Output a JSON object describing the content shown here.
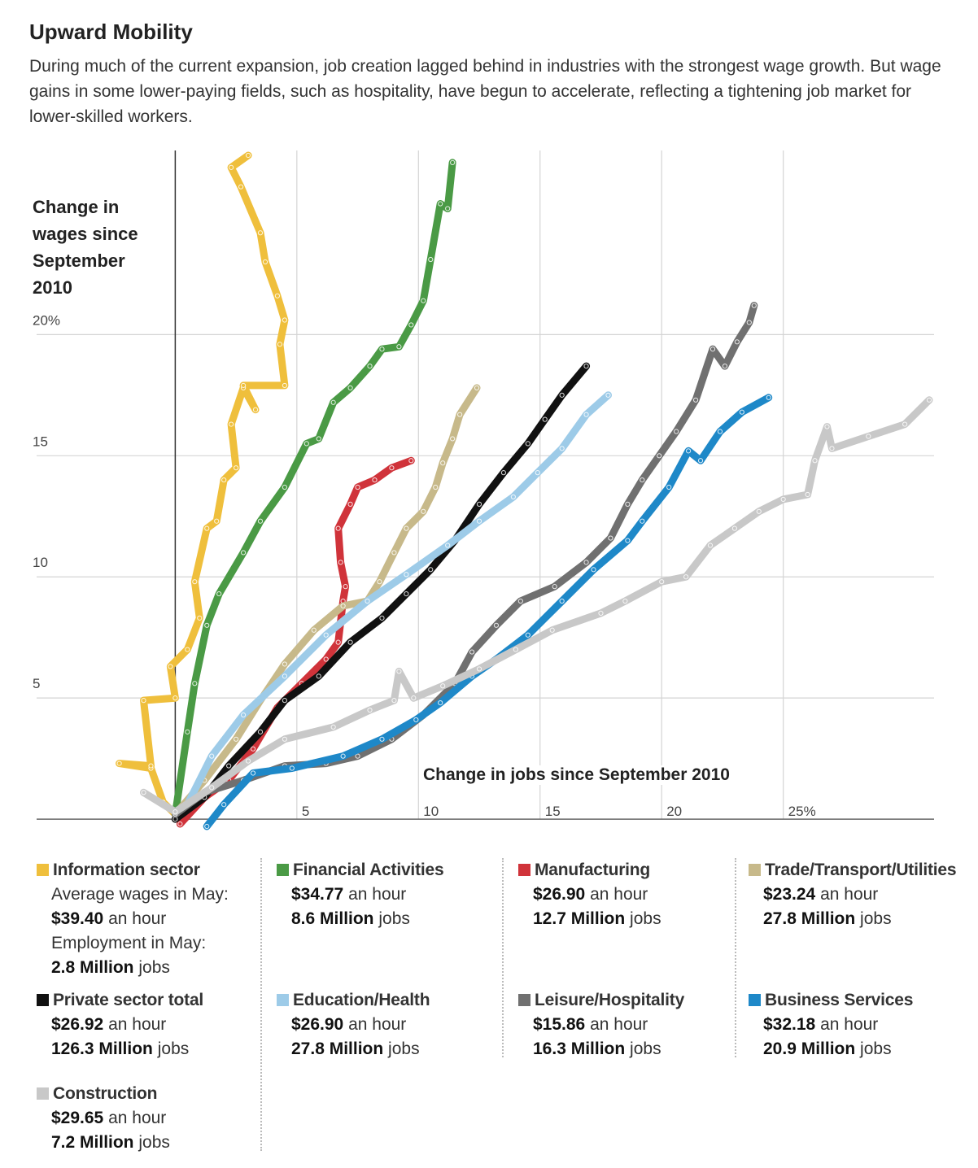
{
  "chart_data": {
    "type": "line",
    "title": "Upward Mobility",
    "subtitle": "During much of the current expansion, job creation lagged behind in industries with the strongest wage growth. But wage gains in some lower-paying fields, such as hospitality, have begun to accelerate, reflecting a tightening job market for lower-skilled workers.",
    "y_label": "Change in wages since September 2010",
    "x_label": "Change in jobs since September 2010",
    "xlim": [
      -5.7,
      31.2
    ],
    "ylim": [
      -0.4,
      27.6
    ],
    "xticks": [
      5,
      10,
      15,
      20,
      {
        "value": 25,
        "label": "25%"
      }
    ],
    "yticks": [
      5,
      10,
      15,
      {
        "value": 20,
        "label": "20%"
      }
    ],
    "grid": true,
    "wage_label": "Average wages in May:",
    "jobs_label": "Employment in May:",
    "wage_unit": "an hour",
    "jobs_unit": "jobs",
    "series": [
      {
        "name": "Information sector",
        "color": "#efbf3c",
        "wage": "$39.40",
        "jobs": "2.8 Million",
        "x": [
          0,
          -0.5,
          -1.0,
          -2.3,
          -1.0,
          -1.3,
          0,
          -0.2,
          0.5,
          1.0,
          0.8,
          1.3,
          1.7,
          2.0,
          2.5,
          2.3,
          2.8,
          3.3,
          2.8,
          4.5,
          4.3,
          4.5,
          4.2,
          3.7,
          3.5,
          2.7,
          2.3,
          3.0
        ],
        "values": [
          0.2,
          0.7,
          2.1,
          2.3,
          2.2,
          4.9,
          5.0,
          6.3,
          7.0,
          8.3,
          9.8,
          12.0,
          12.3,
          14.0,
          14.5,
          16.3,
          17.8,
          16.9,
          17.9,
          17.9,
          19.6,
          20.6,
          21.6,
          23.0,
          24.2,
          26.1,
          26.9,
          27.4
        ]
      },
      {
        "name": "Financial Activities",
        "color": "#4a9a45",
        "wage": "$34.77",
        "jobs": "8.6 Million",
        "x": [
          0,
          0.5,
          0.8,
          1.3,
          1.8,
          2.8,
          3.5,
          4.5,
          5.4,
          5.9,
          6.5,
          7.2,
          8.0,
          8.5,
          9.2,
          9.7,
          10.2,
          10.5,
          10.9,
          11.2,
          11.4
        ],
        "values": [
          0.2,
          3.6,
          5.6,
          8.0,
          9.3,
          11.0,
          12.3,
          13.7,
          15.5,
          15.7,
          17.2,
          17.8,
          18.7,
          19.4,
          19.5,
          20.4,
          21.4,
          23.1,
          25.4,
          25.2,
          27.1
        ]
      },
      {
        "name": "Manufacturing",
        "color": "#d0333a",
        "wage": "$26.90",
        "jobs": "12.7 Million",
        "x": [
          0.2,
          1.2,
          2.2,
          3.2,
          4.2,
          5.2,
          6.2,
          6.7,
          6.9,
          7.0,
          6.8,
          6.7,
          7.2,
          7.5,
          8.2,
          8.9,
          9.7
        ],
        "values": [
          -0.2,
          0.9,
          1.6,
          2.9,
          4.6,
          5.6,
          6.6,
          7.3,
          9.0,
          9.6,
          10.6,
          12.0,
          13.0,
          13.7,
          14.0,
          14.5,
          14.8
        ]
      },
      {
        "name": "Trade/Transport/Utilities",
        "color": "#c7b98a",
        "wage": "$23.24",
        "jobs": "27.8 Million",
        "x": [
          0,
          1.2,
          2.5,
          3.5,
          4.5,
          5.7,
          6.9,
          7.9,
          8.4,
          9.0,
          9.5,
          10.2,
          10.7,
          11.0,
          11.4,
          11.7,
          12.4
        ],
        "values": [
          0.2,
          1.6,
          3.3,
          4.9,
          6.4,
          7.8,
          8.8,
          9.0,
          9.8,
          11.0,
          12.0,
          12.7,
          13.7,
          14.7,
          15.7,
          16.7,
          17.8
        ]
      },
      {
        "name": "Private sector total",
        "color": "#111111",
        "wage": "$26.92",
        "jobs": "126.3 Million",
        "x": [
          0,
          1.2,
          2.2,
          3.5,
          4.5,
          5.9,
          7.2,
          8.5,
          9.5,
          10.5,
          11.5,
          12.5,
          13.5,
          14.5,
          15.2,
          15.9,
          16.9
        ],
        "values": [
          0,
          0.9,
          2.2,
          3.6,
          4.9,
          5.9,
          7.3,
          8.3,
          9.3,
          10.3,
          11.5,
          13.0,
          14.3,
          15.5,
          16.5,
          17.5,
          18.7
        ]
      },
      {
        "name": "Education/Health",
        "color": "#9dcbe8",
        "wage": "$26.90",
        "jobs": "27.8 Million",
        "x": [
          0.5,
          1.5,
          2.8,
          4.5,
          6.2,
          7.9,
          9.5,
          11.2,
          12.5,
          13.9,
          14.9,
          15.9,
          16.9,
          17.8
        ],
        "values": [
          0.6,
          2.6,
          4.3,
          5.9,
          7.6,
          9.0,
          10.1,
          11.3,
          12.3,
          13.3,
          14.3,
          15.3,
          16.7,
          17.5
        ]
      },
      {
        "name": "Leisure/Hospitality",
        "color": "#707070",
        "wage": "$15.86",
        "jobs": "16.3 Million",
        "x": [
          0,
          1.2,
          2.8,
          4.5,
          6.2,
          7.5,
          8.9,
          10.2,
          11.5,
          12.2,
          13.2,
          14.2,
          15.6,
          16.9,
          17.9,
          18.6,
          19.2,
          19.9,
          20.6,
          21.4,
          22.1,
          22.6,
          23.1,
          23.6,
          23.8
        ],
        "values": [
          0.2,
          1.1,
          1.6,
          2.2,
          2.3,
          2.6,
          3.3,
          4.3,
          5.6,
          6.9,
          8.0,
          9.0,
          9.6,
          10.6,
          11.6,
          13.0,
          14.0,
          15.0,
          16.0,
          17.3,
          19.4,
          18.7,
          19.7,
          20.5,
          21.2
        ]
      },
      {
        "name": "Business Services",
        "color": "#1e88c8",
        "wage": "$32.18",
        "jobs": "20.9 Million",
        "x": [
          1.3,
          2.0,
          3.2,
          4.8,
          6.9,
          8.5,
          9.9,
          10.9,
          12.2,
          13.2,
          14.5,
          15.9,
          17.2,
          18.6,
          19.2,
          20.3,
          21.1,
          21.6,
          22.4,
          23.3,
          24.4
        ],
        "values": [
          -0.3,
          0.6,
          1.9,
          2.1,
          2.6,
          3.3,
          4.1,
          4.8,
          5.9,
          6.6,
          7.6,
          9.0,
          10.3,
          11.5,
          12.3,
          13.7,
          15.2,
          14.8,
          16.0,
          16.8,
          17.4
        ]
      },
      {
        "name": "Construction",
        "color": "#c8c8c8",
        "wage": "$29.65",
        "jobs": "7.2 Million",
        "x": [
          -1.3,
          0,
          1.5,
          3.0,
          4.5,
          6.5,
          8.0,
          9.0,
          9.2,
          9.8,
          11.0,
          12.5,
          14.0,
          15.5,
          17.5,
          18.5,
          20.0,
          21.0,
          22.0,
          23.0,
          24.0,
          25.0,
          26.0,
          26.3,
          26.8,
          27.0,
          28.5,
          30.0,
          31.0
        ],
        "values": [
          1.1,
          0.3,
          1.3,
          2.4,
          3.3,
          3.8,
          4.5,
          4.9,
          6.1,
          5.0,
          5.5,
          6.2,
          7.0,
          7.8,
          8.5,
          9.0,
          9.8,
          10.0,
          11.3,
          12.0,
          12.7,
          13.2,
          13.4,
          14.8,
          16.2,
          15.3,
          15.8,
          16.3,
          17.3
        ]
      }
    ]
  }
}
